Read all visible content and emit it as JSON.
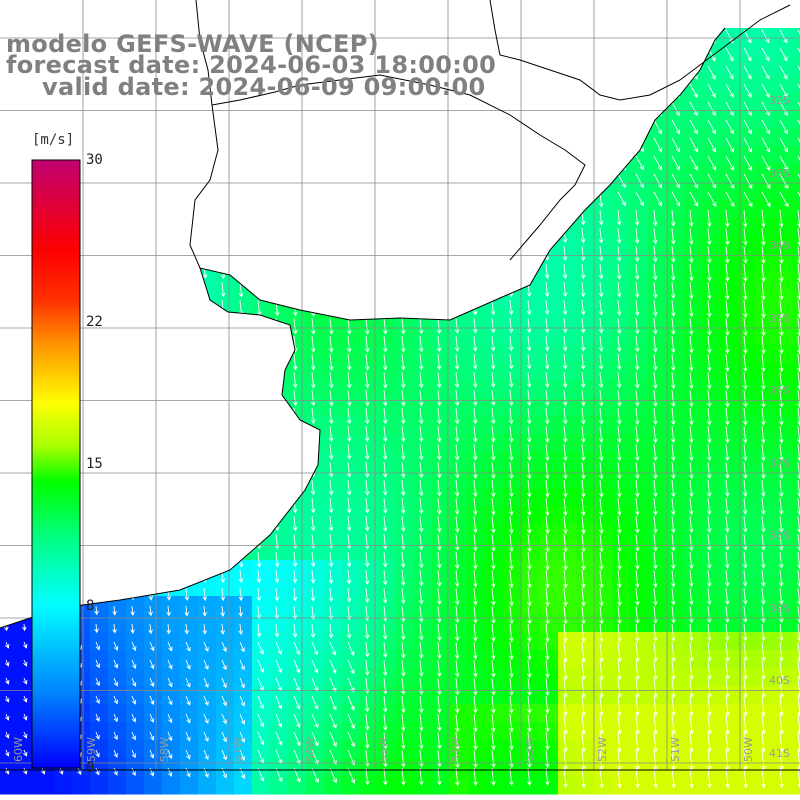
{
  "titles": {
    "model": "modelo GEFS-WAVE (NCEP)",
    "forecast": "forecast date: 2024-06-03 18:00:00",
    "valid": "valid date: 2024-06-09 09:00:00"
  },
  "colorbar": {
    "unit": "[m/s]",
    "ticks": [
      {
        "label": "30",
        "value": 30
      },
      {
        "label": "22",
        "value": 22
      },
      {
        "label": "15",
        "value": 15
      },
      {
        "label": "8",
        "value": 8
      },
      {
        "label": "0",
        "value": 0
      }
    ],
    "min": 0,
    "max": 30,
    "colors": [
      "#0000ff",
      "#00bfff",
      "#00ffff",
      "#00ff40",
      "#00ff00",
      "#aaff00",
      "#ffff00",
      "#ffa000",
      "#ff4000",
      "#ff0000",
      "#c00060"
    ]
  },
  "latitude_labels": [
    "32S",
    "33S",
    "34S",
    "35S",
    "36S",
    "37S",
    "38S",
    "39S",
    "40S",
    "41S"
  ],
  "longitude_labels": [
    "60W",
    "59W",
    "58W",
    "57W",
    "56W",
    "55W",
    "54W",
    "53W",
    "52W",
    "51W",
    "50W"
  ],
  "wind_field": {
    "units": "m/s",
    "regions": [
      {
        "area": "south-west coastal shelf",
        "speed_range": [
          2,
          7
        ]
      },
      {
        "area": "Rio de la Plata mouth",
        "speed_range": [
          9,
          12
        ]
      },
      {
        "area": "open ocean east",
        "speed_range": [
          10,
          14
        ]
      },
      {
        "area": "south-east",
        "speed_range": [
          13,
          16
        ]
      }
    ],
    "direction": "mostly from north (southward flow)"
  }
}
